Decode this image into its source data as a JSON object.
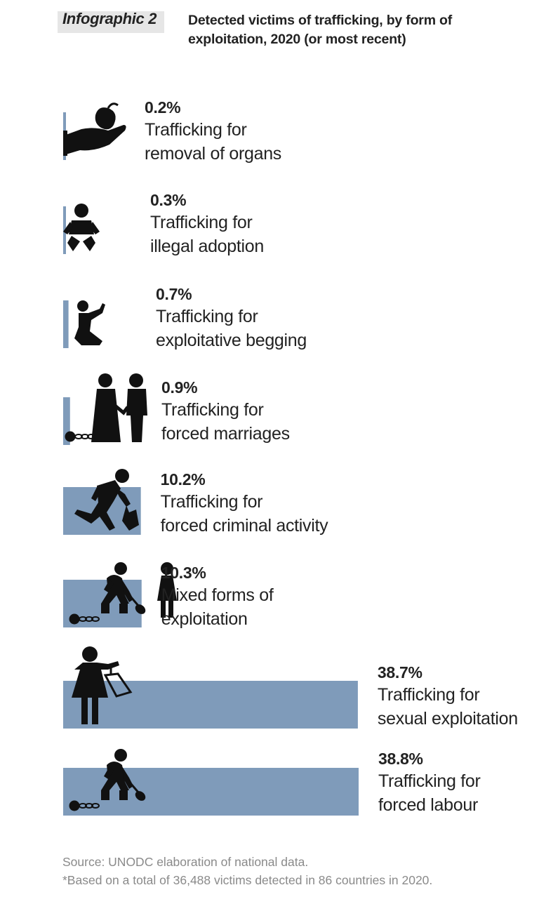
{
  "header": {
    "tag": "Infographic 2",
    "title": "Detected victims of trafficking, by form of exploitation, 2020 (or most recent)"
  },
  "colors": {
    "bar": "#7f9bba",
    "icon": "#111111"
  },
  "chart_data": {
    "type": "bar",
    "orientation": "horizontal",
    "unit": "%",
    "categories": [
      "Trafficking for removal of organs",
      "Trafficking for illegal adoption",
      "Trafficking for exploitative begging",
      "Trafficking for forced marriages",
      "Trafficking for forced criminal activity",
      "Mixed forms of exploitation",
      "Trafficking for sexual exploitation",
      "Trafficking for forced labour"
    ],
    "values": [
      0.2,
      0.3,
      0.7,
      0.9,
      10.2,
      10.3,
      38.7,
      38.8
    ],
    "value_labels": [
      "0.2%",
      "0.3%",
      "0.7%",
      "0.9%",
      "10.2%",
      "10.3%",
      "38.7%",
      "38.8%"
    ],
    "label_lines": [
      [
        "Trafficking for",
        "removal of organs"
      ],
      [
        "Trafficking for",
        "illegal adoption"
      ],
      [
        "Trafficking for",
        "exploitative begging"
      ],
      [
        "Trafficking for",
        "forced marriages"
      ],
      [
        "Trafficking for",
        "forced criminal activity"
      ],
      [
        "Mixed forms of",
        "exploitation"
      ],
      [
        "Trafficking for",
        "sexual exploitation"
      ],
      [
        "Trafficking for",
        "forced labour"
      ]
    ],
    "icons": [
      "organ-in-hand-icon",
      "baby-icon",
      "kneeling-beggar-icon",
      "married-couple-chained-icon",
      "running-thief-icon",
      "chained-worker-and-woman-icon",
      "woman-with-price-tag-icon",
      "chained-worker-with-shovel-icon"
    ]
  },
  "footer": {
    "source": "Source: UNODC elaboration of national data.",
    "note": "*Based on a total of 36,488 victims detected in 86 countries in 2020."
  }
}
